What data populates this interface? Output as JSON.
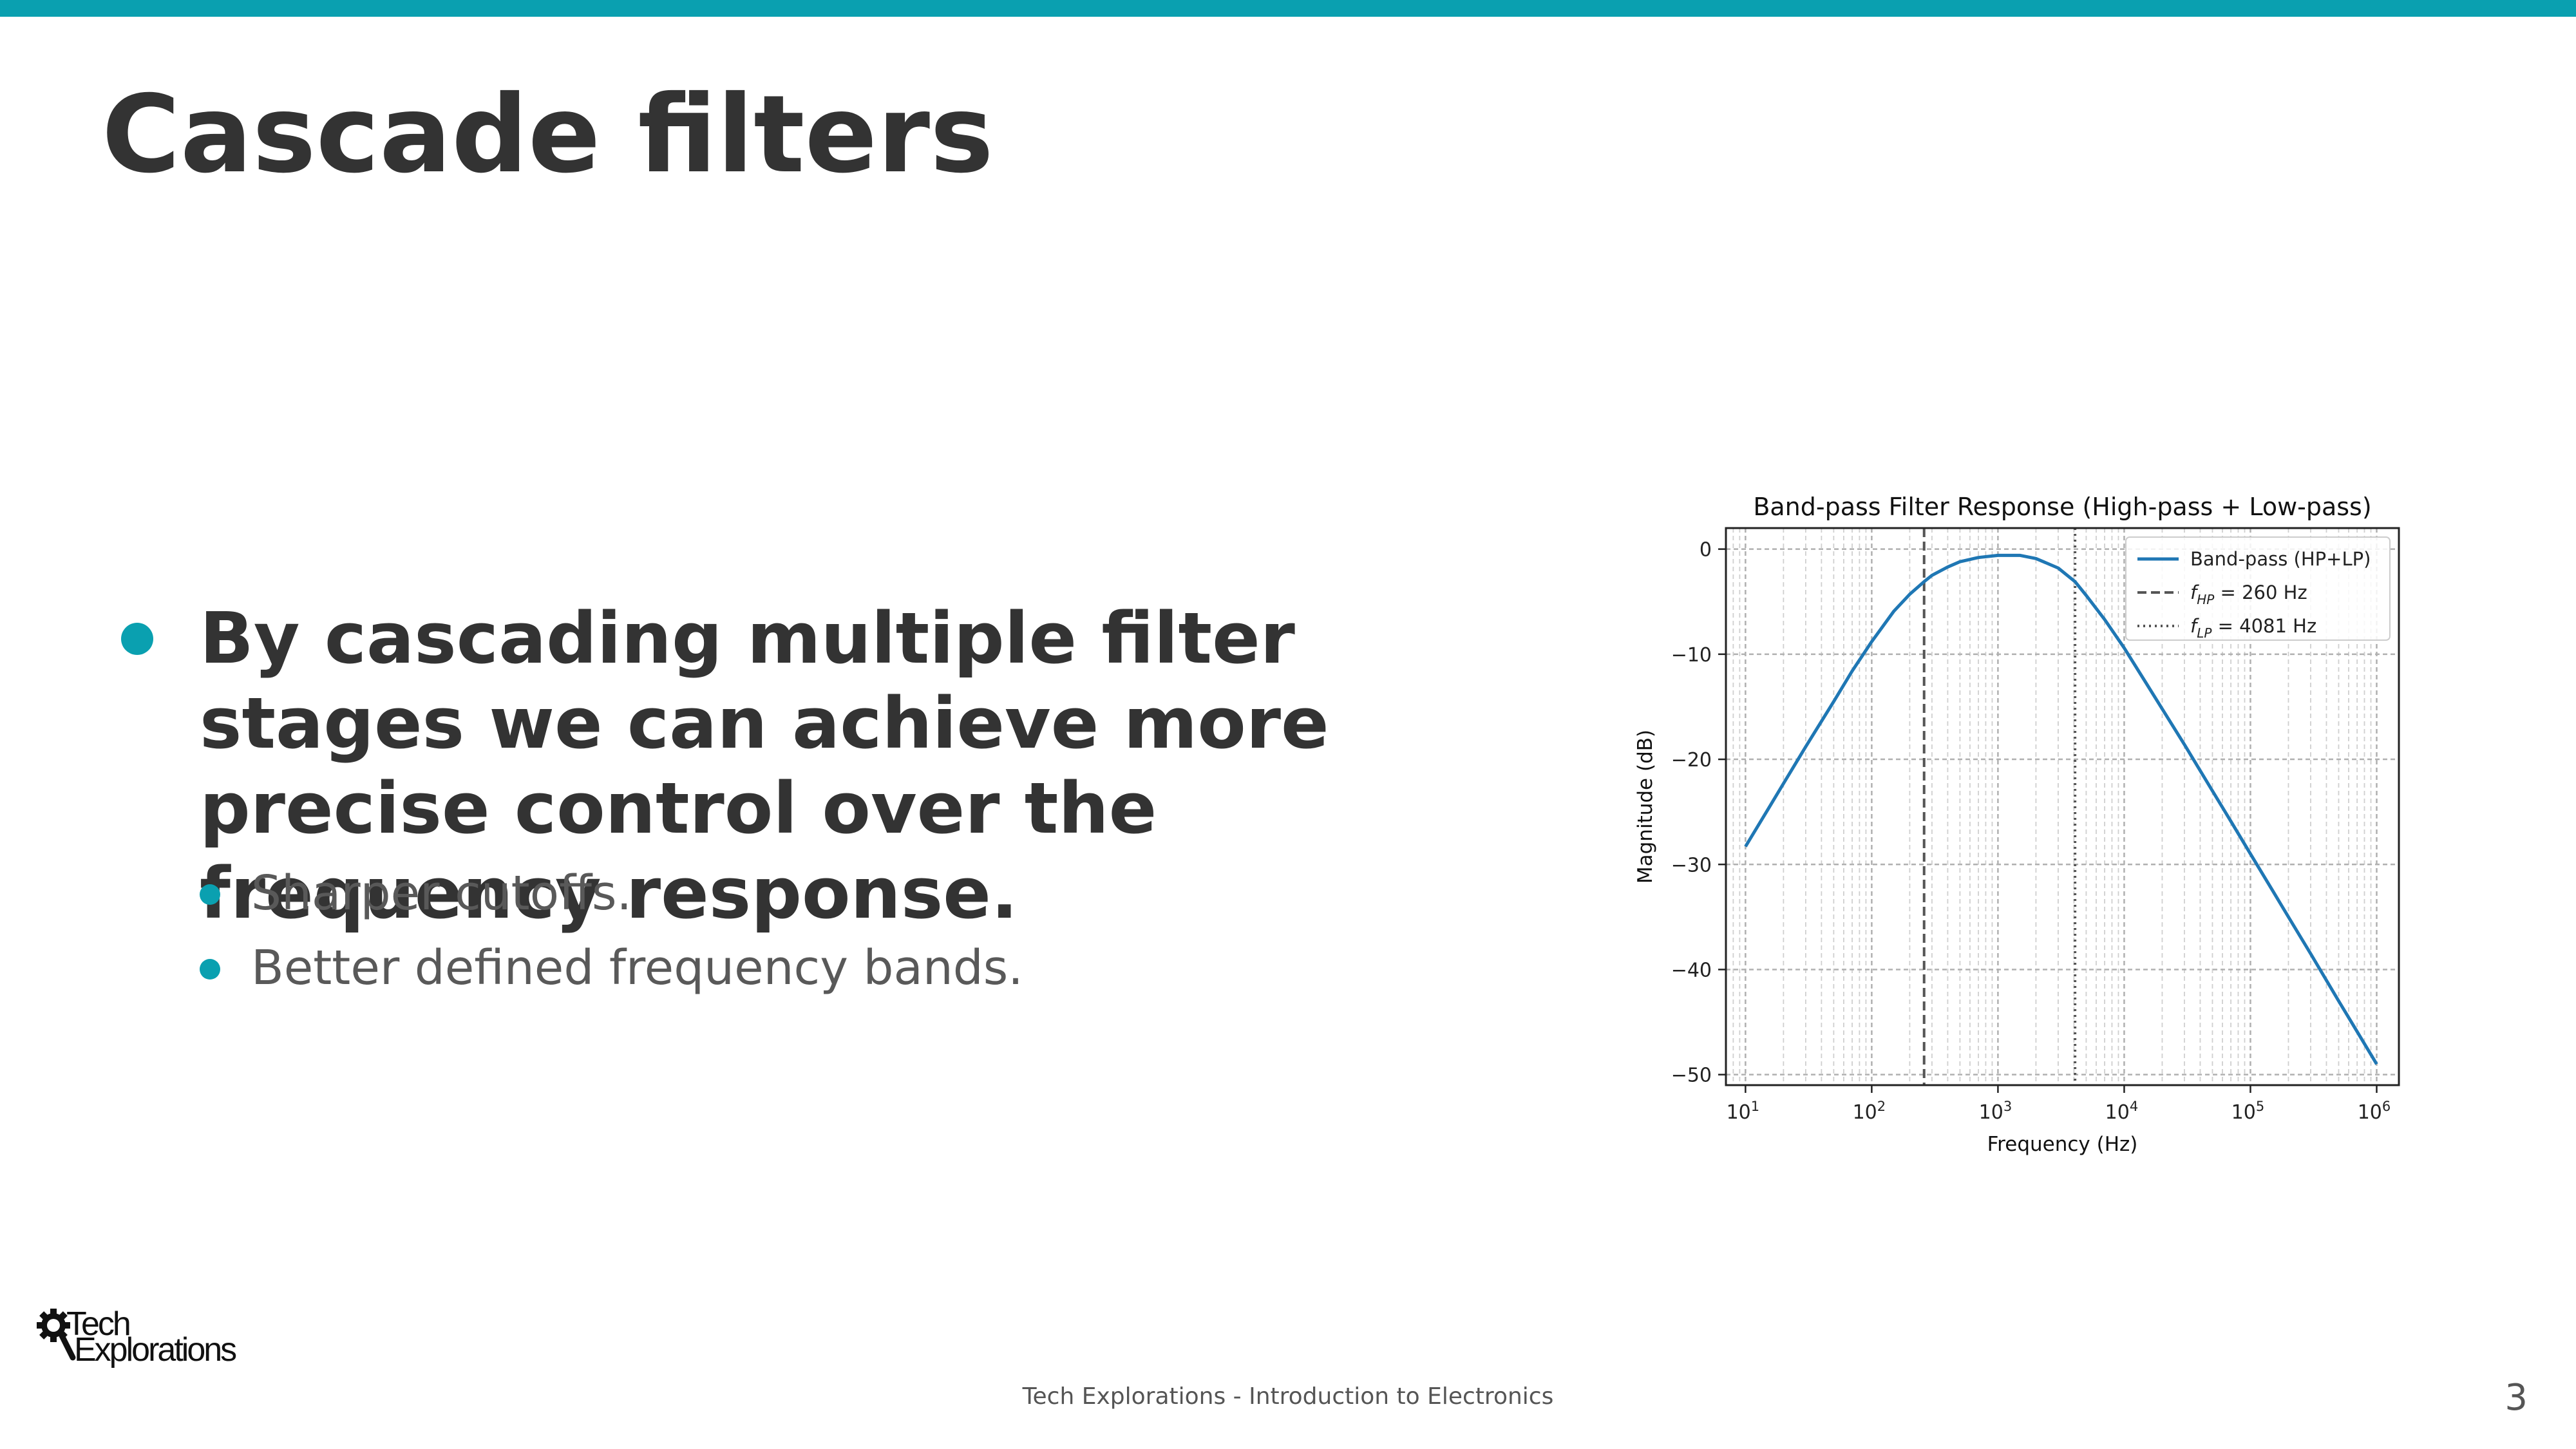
{
  "theme": {
    "accent": "#0aa0b0",
    "text_dark": "#333333",
    "text_muted": "#595959"
  },
  "slide": {
    "title": "Cascade filters",
    "bullet_main": "By cascading multiple filter stages we can achieve more precise control over the frequency response.",
    "sub_bullets": [
      "Sharper cutoffs.",
      "Better defined frequency bands."
    ]
  },
  "logo": {
    "line1": "Tech",
    "line2": "Explorations",
    "icon": "gear-magnifier-icon"
  },
  "footer": {
    "text": "Tech Explorations - Introduction to Electronics",
    "page_number": "3"
  },
  "chart_data": {
    "type": "line",
    "title": "Band-pass Filter Response (High-pass + Low-pass)",
    "xlabel": "Frequency (Hz)",
    "ylabel": "Magnitude (dB)",
    "x_scale": "log",
    "xlim": [
      7,
      1500000
    ],
    "ylim": [
      -51,
      2
    ],
    "x_ticks": [
      {
        "value": 10,
        "base": "10",
        "exp": "1"
      },
      {
        "value": 100,
        "base": "10",
        "exp": "2"
      },
      {
        "value": 1000,
        "base": "10",
        "exp": "3"
      },
      {
        "value": 10000,
        "base": "10",
        "exp": "4"
      },
      {
        "value": 100000,
        "base": "10",
        "exp": "5"
      },
      {
        "value": 1000000,
        "base": "10",
        "exp": "6"
      }
    ],
    "y_ticks": [
      {
        "value": 0,
        "label": "0"
      },
      {
        "value": -10,
        "label": "−10"
      },
      {
        "value": -20,
        "label": "−20"
      },
      {
        "value": -30,
        "label": "−30"
      },
      {
        "value": -40,
        "label": "−40"
      },
      {
        "value": -50,
        "label": "−50"
      }
    ],
    "grid": true,
    "legend_position": "top-right",
    "series": [
      {
        "name": "Band-pass (HP+LP)",
        "color": "#1f77b4",
        "style": "solid",
        "x": [
          10,
          15,
          20,
          30,
          50,
          70,
          100,
          150,
          200,
          260,
          300,
          400,
          500,
          700,
          1000,
          1500,
          2000,
          3000,
          4081,
          5000,
          7000,
          10000,
          15000,
          20000,
          30000,
          50000,
          70000,
          100000,
          150000,
          200000,
          300000,
          500000,
          700000,
          1000000
        ],
        "y": [
          -28.3,
          -24.8,
          -22.3,
          -18.8,
          -14.5,
          -11.6,
          -8.8,
          -5.9,
          -4.3,
          -3.1,
          -2.5,
          -1.7,
          -1.2,
          -0.8,
          -0.6,
          -0.6,
          -0.9,
          -1.8,
          -3.1,
          -4.4,
          -6.7,
          -9.4,
          -12.8,
          -15.2,
          -18.6,
          -23.0,
          -25.9,
          -29.0,
          -32.5,
          -35.0,
          -38.5,
          -43.0,
          -45.9,
          -49.0
        ]
      }
    ],
    "cutoff_lines": [
      {
        "name": "f_HP = 260 Hz",
        "sub": "HP",
        "rest": " = 260 Hz",
        "x": 260,
        "style": "dashed",
        "color": "#555555"
      },
      {
        "name": "f_LP = 4081 Hz",
        "sub": "LP",
        "rest": " = 4081 Hz",
        "x": 4081,
        "style": "dotted",
        "color": "#555555"
      }
    ]
  }
}
